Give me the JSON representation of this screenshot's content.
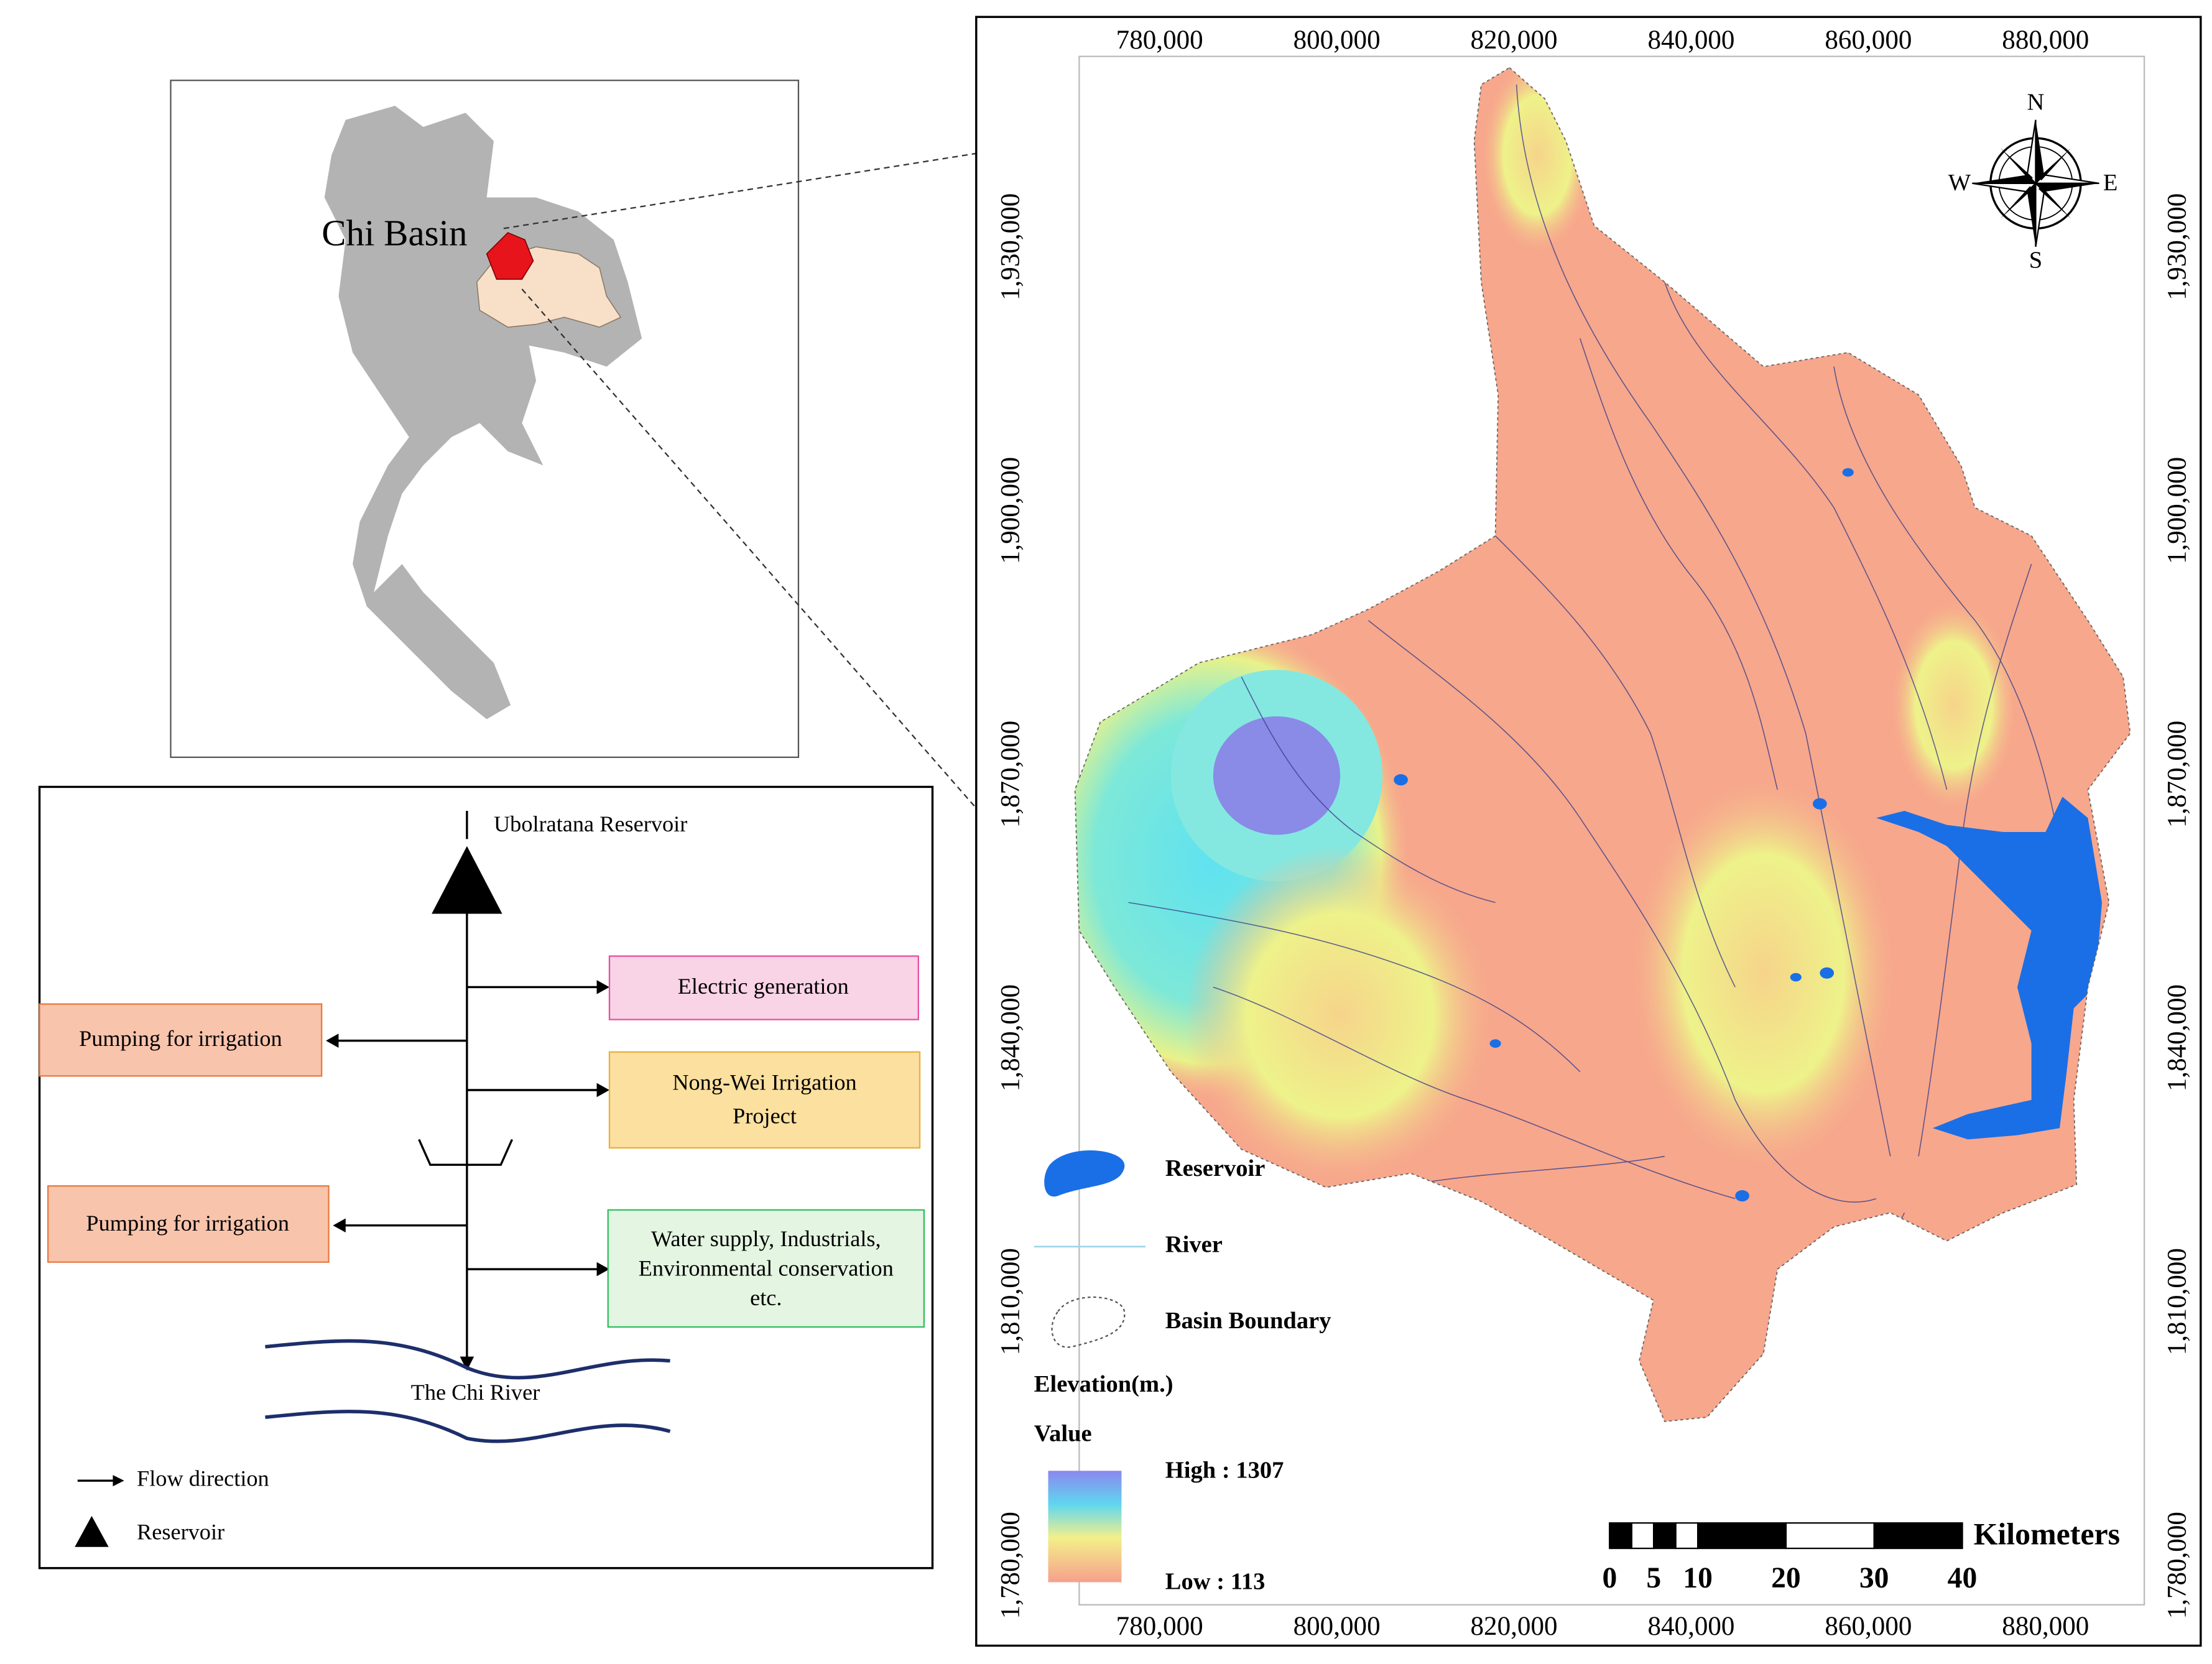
{
  "inset_map": {
    "label": "Chi Basin"
  },
  "flow_diagram": {
    "nodes": {
      "source": "Ubolratana Reservoir",
      "electric": "Electric generation",
      "pumping_1": "Pumping for irrigation",
      "nong_wei": [
        "Nong-Wei Irrigation",
        "Project"
      ],
      "pumping_2": "Pumping for irrigation",
      "water_supply": [
        "Water supply, Industrials,",
        "Environmental conservation",
        "etc."
      ],
      "river": "The Chi River"
    },
    "legend": [
      "Flow direction",
      "Reservoir"
    ]
  },
  "elevation_map": {
    "x_ticks": [
      "780,000",
      "800,000",
      "820,000",
      "840,000",
      "860,000",
      "880,000"
    ],
    "y_ticks": [
      "1,930,000",
      "1,900,000",
      "1,870,000",
      "1,840,000",
      "1,810,000",
      "1,780,000"
    ],
    "compass": {
      "n": "N",
      "e": "E",
      "s": "S",
      "w": "W"
    },
    "legend": {
      "reservoir": "Reservoir",
      "river": "River",
      "boundary": "Basin Boundary",
      "elevation_title": "Elevation(m.)",
      "value_title": "Value",
      "high": "High : 1307",
      "low": "Low : 113"
    },
    "scale_bar": {
      "values": [
        0,
        5,
        10,
        20,
        30,
        40
      ],
      "unit": "Kilometers"
    }
  }
}
